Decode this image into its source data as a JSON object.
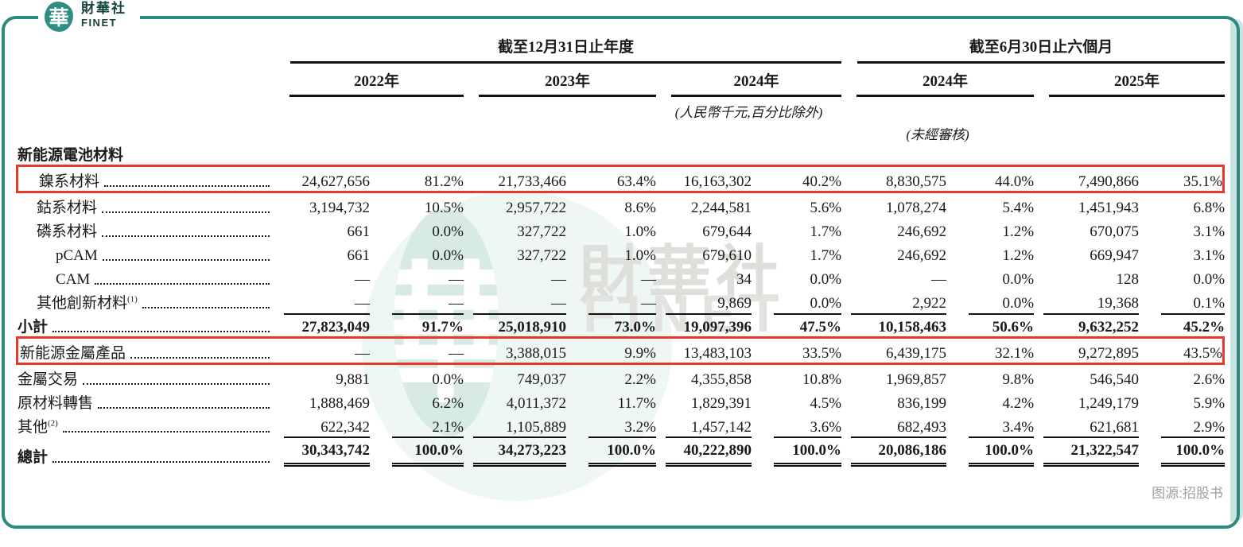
{
  "logo": {
    "glyph": "華",
    "name_zh": "財華社",
    "name_en": "FINET"
  },
  "watermark": {
    "glyph": "華",
    "text_zh": "財華社",
    "text_en": "FINET"
  },
  "source_note": "图源:招股书",
  "colors": {
    "accent_teal": "#2d8a81",
    "highlight_red": "#e8382b"
  },
  "table": {
    "group_headers": [
      {
        "label": "截至12月31日止年度",
        "pairs": 3
      },
      {
        "label": "截至6月30日止六個月",
        "pairs": 2
      }
    ],
    "year_headers": [
      "2022年",
      "2023年",
      "2024年",
      "2024年",
      "2025年"
    ],
    "notes": {
      "currency": "(人民幣千元,百分比除外)",
      "unaudited": "(未經審核)"
    },
    "rows": [
      {
        "type": "section",
        "label": "新能源電池材料",
        "values": []
      },
      {
        "label": "鎳系材料",
        "indent": 1,
        "highlight": true,
        "values": [
          "24,627,656",
          "81.2%",
          "21,733,466",
          "63.4%",
          "16,163,302",
          "40.2%",
          "8,830,575",
          "44.0%",
          "7,490,866",
          "35.1%"
        ]
      },
      {
        "label": "鈷系材料",
        "indent": 1,
        "values": [
          "3,194,732",
          "10.5%",
          "2,957,722",
          "8.6%",
          "2,244,581",
          "5.6%",
          "1,078,274",
          "5.4%",
          "1,451,943",
          "6.8%"
        ]
      },
      {
        "label": "磷系材料",
        "indent": 1,
        "values": [
          "661",
          "0.0%",
          "327,722",
          "1.0%",
          "679,644",
          "1.7%",
          "246,692",
          "1.2%",
          "670,075",
          "3.1%"
        ]
      },
      {
        "label": "pCAM",
        "indent": 2,
        "values": [
          "661",
          "0.0%",
          "327,722",
          "1.0%",
          "679,610",
          "1.7%",
          "246,692",
          "1.2%",
          "669,947",
          "3.1%"
        ]
      },
      {
        "label": "CAM",
        "indent": 2,
        "values": [
          "—",
          "—",
          "—",
          "—",
          "34",
          "0.0%",
          "—",
          "0.0%",
          "128",
          "0.0%"
        ]
      },
      {
        "label": "其他創新材料",
        "sup": "(1)",
        "indent": 1,
        "values": [
          "—",
          "—",
          "—",
          "—",
          "9,869",
          "0.0%",
          "2,922",
          "0.0%",
          "19,368",
          "0.1%"
        ]
      },
      {
        "label": "小計",
        "bold": true,
        "rule_above": true,
        "values": [
          "27,823,049",
          "91.7%",
          "25,018,910",
          "73.0%",
          "19,097,396",
          "47.5%",
          "10,158,463",
          "50.6%",
          "9,632,252",
          "45.2%"
        ]
      },
      {
        "label": "新能源金屬產品",
        "highlight": true,
        "values": [
          "—",
          "—",
          "3,388,015",
          "9.9%",
          "13,483,103",
          "33.5%",
          "6,439,175",
          "32.1%",
          "9,272,895",
          "43.5%"
        ]
      },
      {
        "label": "金屬交易",
        "values": [
          "9,881",
          "0.0%",
          "749,037",
          "2.2%",
          "4,355,858",
          "10.8%",
          "1,969,857",
          "9.8%",
          "546,540",
          "2.6%"
        ]
      },
      {
        "label": "原材料轉售",
        "values": [
          "1,888,469",
          "6.2%",
          "4,011,372",
          "11.7%",
          "1,829,391",
          "4.5%",
          "836,199",
          "4.2%",
          "1,249,179",
          "5.9%"
        ]
      },
      {
        "label": "其他",
        "sup": "(2)",
        "values": [
          "622,342",
          "2.1%",
          "1,105,889",
          "3.2%",
          "1,457,142",
          "3.6%",
          "682,493",
          "3.4%",
          "621,681",
          "2.9%"
        ]
      },
      {
        "label": "總計",
        "bold": true,
        "rule_above": true,
        "double_below": true,
        "values": [
          "30,343,742",
          "100.0%",
          "34,273,223",
          "100.0%",
          "40,222,890",
          "100.0%",
          "20,086,186",
          "100.0%",
          "21,322,547",
          "100.0%"
        ]
      }
    ]
  }
}
